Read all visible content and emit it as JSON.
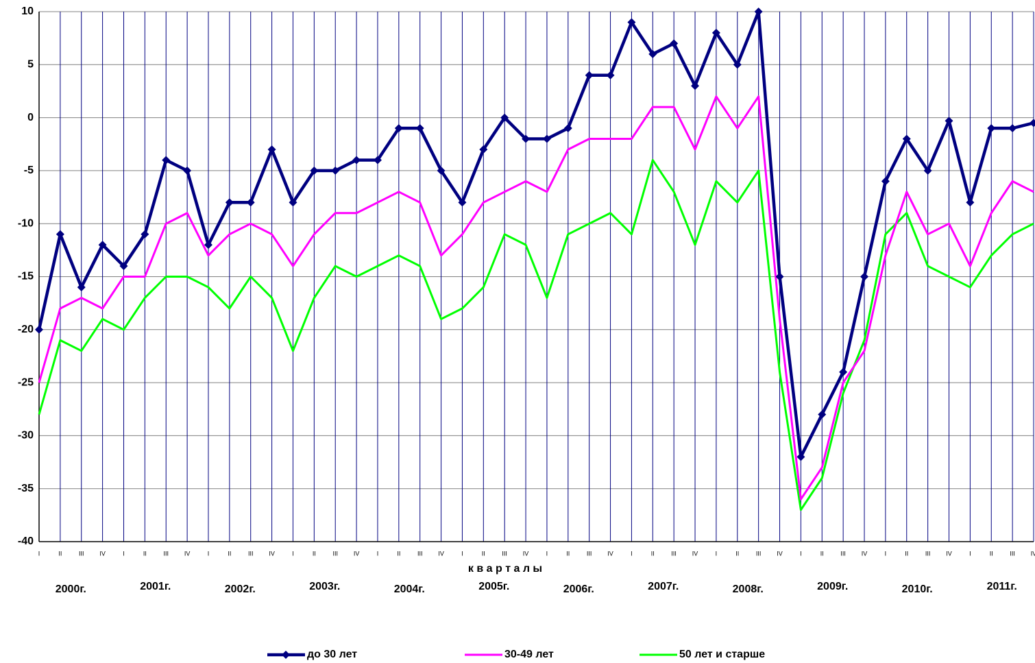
{
  "chart_data": {
    "type": "line",
    "x_label": "к в а р т а л ы",
    "categories": [
      "I",
      "II",
      "III",
      "IV",
      "I",
      "II",
      "III",
      "IV",
      "I",
      "II",
      "III",
      "IV",
      "I",
      "II",
      "III",
      "IV",
      "I",
      "II",
      "III",
      "IV",
      "I",
      "II",
      "III",
      "IV",
      "I",
      "II",
      "III",
      "IV",
      "I",
      "II",
      "III",
      "IV",
      "I",
      "II",
      "III",
      "IV",
      "I",
      "II",
      "III",
      "IV",
      "I",
      "II",
      "III",
      "IV",
      "I",
      "II",
      "III",
      "IV"
    ],
    "category_groups": [
      "2000г.",
      "2001г.",
      "2002г.",
      "2003г.",
      "2004г.",
      "2005г.",
      "2006г.",
      "2007г.",
      "2008г.",
      "2009г.",
      "2010г.",
      "2011г."
    ],
    "series": [
      {
        "name": "до 30 лет",
        "color": "#000080",
        "marker": "diamond",
        "values": [
          -20,
          -11,
          -16,
          -12,
          -14,
          -11,
          -4,
          -5,
          -12,
          -8,
          -8,
          -3,
          -8,
          -5,
          -5,
          -4,
          -4,
          -1,
          -1,
          -5,
          -8,
          -3,
          0,
          -2,
          -2,
          -1,
          4,
          4,
          9,
          6,
          7,
          3,
          8,
          5,
          10,
          -15,
          -32,
          -28,
          -24,
          -15,
          -6,
          -2,
          -5,
          -0.3,
          -8,
          -1,
          -1,
          -0.5
        ]
      },
      {
        "name": "30-49 лет",
        "color": "#ff00ff",
        "values": [
          -25,
          -18,
          -17,
          -18,
          -15,
          -15,
          -10,
          -9,
          -13,
          -11,
          -10,
          -11,
          -14,
          -11,
          -9,
          -9,
          -8,
          -7,
          -8,
          -13,
          -11,
          -8,
          -7,
          -6,
          -7,
          -3,
          -2,
          -2,
          -2,
          1,
          1,
          -3,
          2,
          -1,
          2,
          -19,
          -36,
          -33,
          -25,
          -22,
          -13,
          -7,
          -11,
          -10,
          -14,
          -9,
          -6,
          -7
        ]
      },
      {
        "name": "50 лет  и старше",
        "color": "#00ff00",
        "values": [
          -28,
          -21,
          -22,
          -19,
          -20,
          -17,
          -15,
          -15,
          -16,
          -18,
          -15,
          -17,
          -22,
          -17,
          -14,
          -15,
          -14,
          -13,
          -14,
          -19,
          -18,
          -16,
          -11,
          -12,
          -17,
          -11,
          -10,
          -9,
          -11,
          -4,
          -7,
          -12,
          -6,
          -8,
          -5,
          -24,
          -37,
          -34,
          -26,
          -21,
          -11,
          -9,
          -14,
          -15,
          -16,
          -13,
          -11,
          -10
        ]
      }
    ],
    "ylim": [
      -40,
      10
    ],
    "yticks": [
      10,
      5,
      0,
      -5,
      -10,
      -15,
      -20,
      -25,
      -30,
      -35,
      -40
    ],
    "grid": true,
    "legend": "bottom"
  }
}
